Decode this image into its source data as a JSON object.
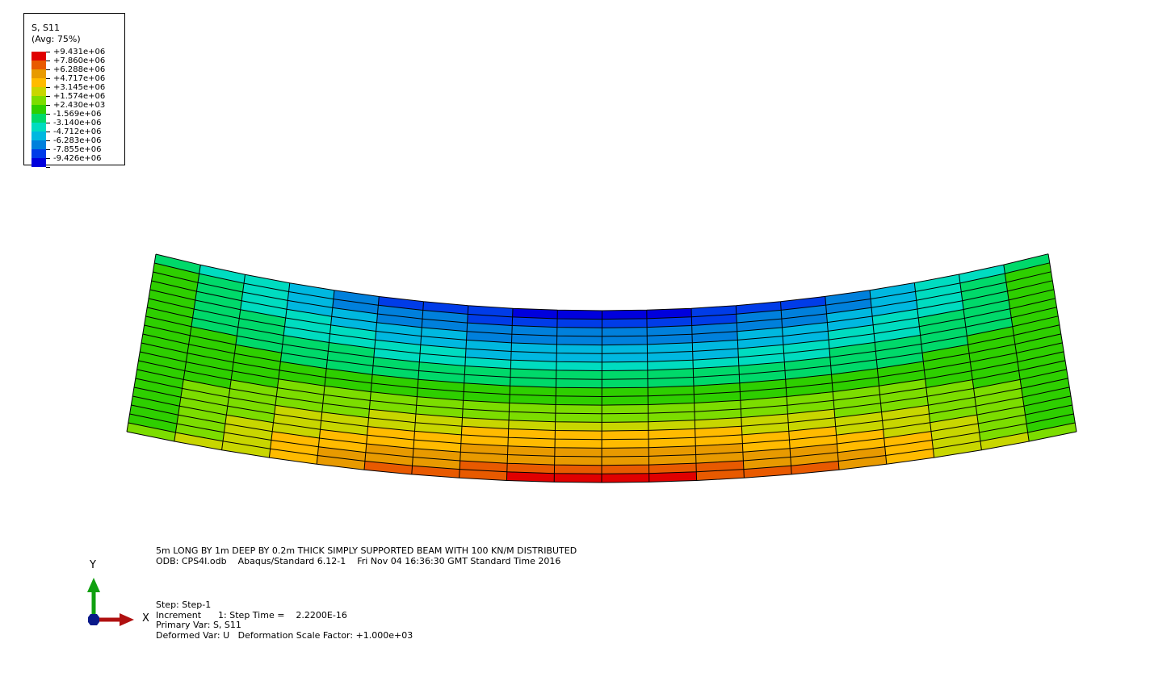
{
  "legend": {
    "variable": "S, S11",
    "averaging": "(Avg: 75%)",
    "bands": [
      {
        "color": "#e00000",
        "label": "+9.431e+06"
      },
      {
        "color": "#e85a00",
        "label": "+7.860e+06"
      },
      {
        "color": "#e89a00",
        "label": "+6.288e+06"
      },
      {
        "color": "#ffbb00",
        "label": "+4.717e+06"
      },
      {
        "color": "#c8d600",
        "label": "+3.145e+06"
      },
      {
        "color": "#7cdd00",
        "label": "+1.574e+06"
      },
      {
        "color": "#2ecf00",
        "label": "+2.430e+03"
      },
      {
        "color": "#00d96a",
        "label": "-1.569e+06"
      },
      {
        "color": "#00dcc0",
        "label": "-3.140e+06"
      },
      {
        "color": "#00b8e0",
        "label": "-4.712e+06"
      },
      {
        "color": "#0080dc",
        "label": "-6.283e+06"
      },
      {
        "color": "#003ce8",
        "label": "-7.855e+06"
      },
      {
        "color": "#0000dd",
        "label": "-9.426e+06"
      }
    ]
  },
  "viewport_title": {
    "line1": "5m LONG BY 1m DEEP BY 0.2m THICK SIMPLY SUPPORTED BEAM WITH 100 KN/M DISTRIBUTED",
    "line2": "ODB: CPS4I.odb    Abaqus/Standard 6.12-1    Fri Nov 04 16:36:30 GMT Standard Time 2016"
  },
  "state_block": {
    "step": "Step: Step-1",
    "increment": "Increment      1: Step Time =    2.2200E-16",
    "primary_var": "Primary Var: S, S11",
    "deformed_var": "Deformed Var: U   Deformation Scale Factor: +1.000e+03"
  },
  "triad": {
    "x_label": "X",
    "y_label": "Y",
    "x_color": "#b01010",
    "y_color": "#10a010",
    "origin_color": "#0a1a8a"
  },
  "mesh": {
    "columns": 20,
    "rows": 20,
    "grid_color": "#000000"
  }
}
